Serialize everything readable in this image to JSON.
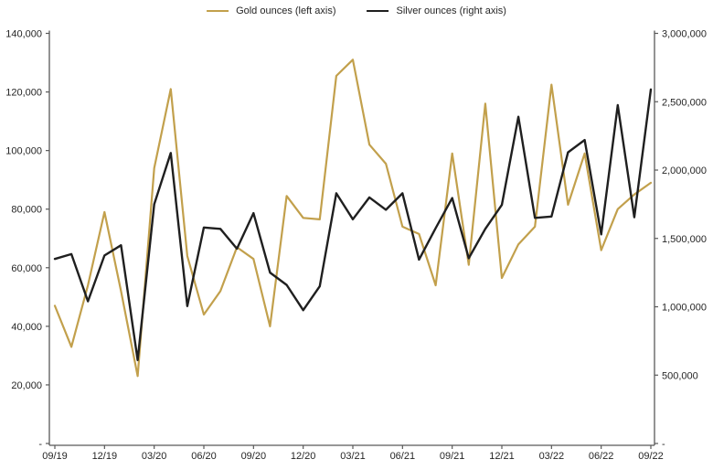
{
  "chart_data": {
    "type": "line",
    "title": "",
    "legend_position": "top",
    "x": [
      "09/19",
      "10/19",
      "11/19",
      "12/19",
      "01/20",
      "02/20",
      "03/20",
      "04/20",
      "05/20",
      "06/20",
      "07/20",
      "08/20",
      "09/20",
      "10/20",
      "11/20",
      "12/20",
      "01/21",
      "02/21",
      "03/21",
      "04/21",
      "05/21",
      "06/21",
      "07/21",
      "08/21",
      "09/21",
      "10/21",
      "11/21",
      "12/21",
      "01/22",
      "02/22",
      "03/22",
      "04/22",
      "05/22",
      "06/22",
      "07/22",
      "08/22",
      "09/22"
    ],
    "x_tick_labels": [
      "09/19",
      "12/19",
      "03/20",
      "06/20",
      "09/20",
      "12/20",
      "03/21",
      "06/21",
      "09/21",
      "12/21",
      "03/22",
      "06/22",
      "09/22"
    ],
    "series": [
      {
        "name": "Gold ounces (left axis)",
        "axis": "left",
        "color": "#C2A04C",
        "values": [
          47000,
          33000,
          54000,
          79000,
          52000,
          23000,
          94000,
          121000,
          64000,
          44000,
          52000,
          67000,
          63000,
          40000,
          84500,
          77000,
          76500,
          125500,
          131000,
          102000,
          95500,
          74000,
          71500,
          54000,
          99000,
          61000,
          116000,
          56500,
          68000,
          74000,
          122500,
          81500,
          99000,
          66000,
          80000,
          85000,
          89000
        ]
      },
      {
        "name": "Silver ounces (right axis)",
        "axis": "right",
        "color": "#1F1F1F",
        "values": [
          1350000,
          1385000,
          1040000,
          1375000,
          1450000,
          610000,
          1750000,
          2125000,
          1005000,
          1580000,
          1570000,
          1425000,
          1685000,
          1250000,
          1160000,
          975000,
          1150000,
          1830000,
          1640000,
          1800000,
          1710000,
          1830000,
          1345000,
          1575000,
          1795000,
          1355000,
          1570000,
          1745000,
          2390000,
          1650000,
          1660000,
          2130000,
          2220000,
          1530000,
          2475000,
          1655000,
          2590000
        ]
      }
    ],
    "left_axis": {
      "min": 0,
      "max": 140000,
      "step": 20000,
      "zero_label": "-",
      "tick_labels": [
        "-",
        "20,000",
        "40,000",
        "60,000",
        "80,000",
        "100,000",
        "120,000",
        "140,000"
      ]
    },
    "right_axis": {
      "min": 0,
      "max": 3000000,
      "step": 500000,
      "zero_label": "-",
      "tick_labels": [
        "-",
        "500,000",
        "1,000,000",
        "1,500,000",
        "2,000,000",
        "2,500,000",
        "3,000,000"
      ]
    },
    "grid": false,
    "colors": {
      "axis_line": "#595959",
      "tick_text": "#262626",
      "background": "#FFFFFF"
    }
  }
}
